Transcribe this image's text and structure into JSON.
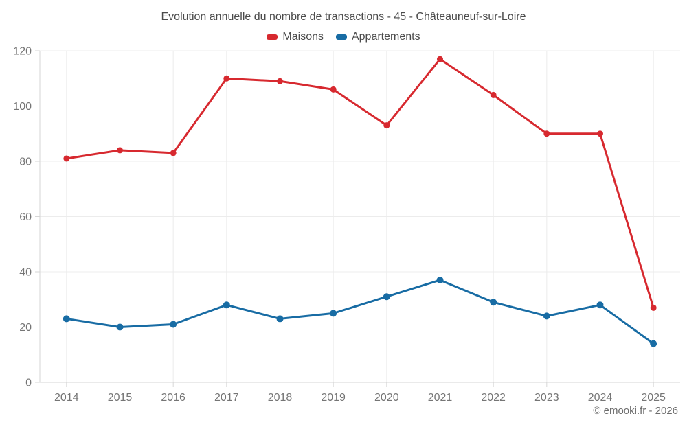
{
  "page": {
    "footer": "© emooki.fr - 2026"
  },
  "chart_data": {
    "type": "line",
    "title": "Evolution annuelle du nombre de transactions - 45 - Châteauneuf-sur-Loire",
    "categories": [
      "2014",
      "2015",
      "2016",
      "2017",
      "2018",
      "2019",
      "2020",
      "2021",
      "2022",
      "2023",
      "2024",
      "2025"
    ],
    "series": [
      {
        "name": "Maisons",
        "color": "#d7292f",
        "marker_radius": 4.5,
        "values": [
          81,
          84,
          83,
          110,
          109,
          106,
          93,
          117,
          104,
          90,
          90,
          27
        ]
      },
      {
        "name": "Appartements",
        "color": "#186ca4",
        "marker_radius": 5,
        "values": [
          23,
          20,
          21,
          28,
          23,
          25,
          31,
          37,
          29,
          24,
          28,
          14
        ]
      }
    ],
    "xlabel": "",
    "ylabel": "",
    "ylim": [
      0,
      120
    ],
    "ytick_step": 20,
    "yticks": [
      0,
      20,
      40,
      60,
      80,
      100,
      120
    ],
    "grid": true,
    "legend_position": "top",
    "grid_color": "#ececec",
    "axis_color": "#d6d6d6",
    "tick_label_color": "#757575"
  }
}
